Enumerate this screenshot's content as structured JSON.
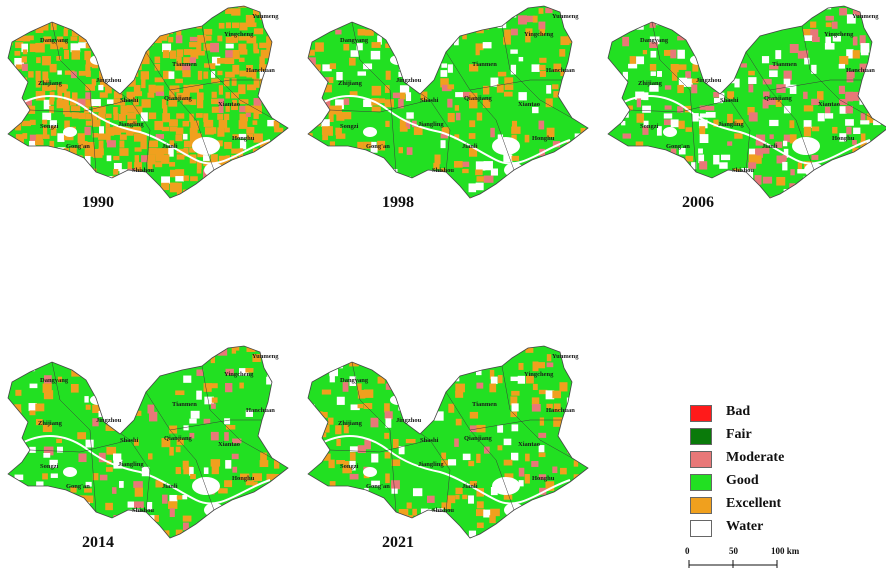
{
  "panels": [
    {
      "year": "1990",
      "dominant": "excellent"
    },
    {
      "year": "1998",
      "dominant": "good"
    },
    {
      "year": "2006",
      "dominant": "good_moderate"
    },
    {
      "year": "2014",
      "dominant": "good"
    },
    {
      "year": "2021",
      "dominant": "good"
    }
  ],
  "places": [
    "Dangyang",
    "Zhijiang",
    "Jingzhou",
    "Songzi",
    "Gong'an",
    "Jiangling",
    "Shashi",
    "Qianjiang",
    "Tianmen",
    "Yingcheng",
    "Yunmeng",
    "Hanchuan",
    "Xiantao",
    "Jianli",
    "Honghu",
    "Shishou"
  ],
  "legend": [
    {
      "label": "Bad",
      "color": "#ff1a1a"
    },
    {
      "label": "Fair",
      "color": "#0a7a0a"
    },
    {
      "label": "Moderate",
      "color": "#e87878"
    },
    {
      "label": "Good",
      "color": "#22e022"
    },
    {
      "label": "Excellent",
      "color": "#f0a01e"
    },
    {
      "label": "Water",
      "color": "#ffffff"
    }
  ],
  "scale": {
    "ticks": [
      "0",
      "50",
      "100 km"
    ]
  }
}
